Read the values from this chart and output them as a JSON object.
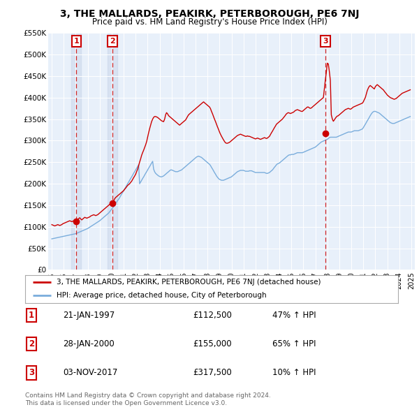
{
  "title": "3, THE MALLARDS, PEAKIRK, PETERBOROUGH, PE6 7NJ",
  "subtitle": "Price paid vs. HM Land Registry's House Price Index (HPI)",
  "ylim": [
    0,
    550000
  ],
  "yticks": [
    0,
    50000,
    100000,
    150000,
    200000,
    250000,
    300000,
    350000,
    400000,
    450000,
    500000,
    550000
  ],
  "ytick_labels": [
    "£0",
    "£50K",
    "£100K",
    "£150K",
    "£200K",
    "£250K",
    "£300K",
    "£350K",
    "£400K",
    "£450K",
    "£500K",
    "£550K"
  ],
  "xlim_start": 1994.7,
  "xlim_end": 2025.3,
  "background_color": "#E8F0FA",
  "grid_color": "#FFFFFF",
  "sale_dates": [
    1997.05,
    2000.07,
    2017.84
  ],
  "sale_prices": [
    112500,
    155000,
    317500
  ],
  "sale_labels": [
    "1",
    "2",
    "3"
  ],
  "sale_pct": [
    "47% ↑ HPI",
    "65% ↑ HPI",
    "10% ↑ HPI"
  ],
  "sale_date_strs": [
    "21-JAN-1997",
    "28-JAN-2000",
    "03-NOV-2017"
  ],
  "sale_prices_str": [
    "£112,500",
    "£155,000",
    "£317,500"
  ],
  "legend_line1": "3, THE MALLARDS, PEAKIRK, PETERBOROUGH, PE6 7NJ (detached house)",
  "legend_line2": "HPI: Average price, detached house, City of Peterborough",
  "footer": "Contains HM Land Registry data © Crown copyright and database right 2024.\nThis data is licensed under the Open Government Licence v3.0.",
  "red_line_x": [
    1995.0,
    1995.08,
    1995.17,
    1995.25,
    1995.33,
    1995.42,
    1995.5,
    1995.58,
    1995.67,
    1995.75,
    1995.83,
    1995.92,
    1996.0,
    1996.08,
    1996.17,
    1996.25,
    1996.33,
    1996.42,
    1996.5,
    1996.58,
    1996.67,
    1996.75,
    1996.83,
    1996.92,
    1997.0,
    1997.08,
    1997.17,
    1997.25,
    1997.33,
    1997.42,
    1997.5,
    1997.58,
    1997.67,
    1997.75,
    1997.83,
    1997.92,
    1998.0,
    1998.08,
    1998.17,
    1998.25,
    1998.33,
    1998.42,
    1998.5,
    1998.58,
    1998.67,
    1998.75,
    1998.83,
    1998.92,
    1999.0,
    1999.08,
    1999.17,
    1999.25,
    1999.33,
    1999.42,
    1999.5,
    1999.58,
    1999.67,
    1999.75,
    1999.83,
    1999.92,
    2000.0,
    2000.08,
    2000.17,
    2000.25,
    2000.33,
    2000.42,
    2000.5,
    2000.58,
    2000.67,
    2000.75,
    2000.83,
    2000.92,
    2001.0,
    2001.08,
    2001.17,
    2001.25,
    2001.33,
    2001.42,
    2001.5,
    2001.58,
    2001.67,
    2001.75,
    2001.83,
    2001.92,
    2002.0,
    2002.08,
    2002.17,
    2002.25,
    2002.33,
    2002.42,
    2002.5,
    2002.58,
    2002.67,
    2002.75,
    2002.83,
    2002.92,
    2003.0,
    2003.08,
    2003.17,
    2003.25,
    2003.33,
    2003.42,
    2003.5,
    2003.58,
    2003.67,
    2003.75,
    2003.83,
    2003.92,
    2004.0,
    2004.08,
    2004.17,
    2004.25,
    2004.33,
    2004.42,
    2004.5,
    2004.58,
    2004.67,
    2004.75,
    2004.83,
    2004.92,
    2005.0,
    2005.08,
    2005.17,
    2005.25,
    2005.33,
    2005.42,
    2005.5,
    2005.58,
    2005.67,
    2005.75,
    2005.83,
    2005.92,
    2006.0,
    2006.08,
    2006.17,
    2006.25,
    2006.33,
    2006.42,
    2006.5,
    2006.58,
    2006.67,
    2006.75,
    2006.83,
    2006.92,
    2007.0,
    2007.08,
    2007.17,
    2007.25,
    2007.33,
    2007.42,
    2007.5,
    2007.58,
    2007.67,
    2007.75,
    2007.83,
    2007.92,
    2008.0,
    2008.08,
    2008.17,
    2008.25,
    2008.33,
    2008.42,
    2008.5,
    2008.58,
    2008.67,
    2008.75,
    2008.83,
    2008.92,
    2009.0,
    2009.08,
    2009.17,
    2009.25,
    2009.33,
    2009.42,
    2009.5,
    2009.58,
    2009.67,
    2009.75,
    2009.83,
    2009.92,
    2010.0,
    2010.08,
    2010.17,
    2010.25,
    2010.33,
    2010.42,
    2010.5,
    2010.58,
    2010.67,
    2010.75,
    2010.83,
    2010.92,
    2011.0,
    2011.08,
    2011.17,
    2011.25,
    2011.33,
    2011.42,
    2011.5,
    2011.58,
    2011.67,
    2011.75,
    2011.83,
    2011.92,
    2012.0,
    2012.08,
    2012.17,
    2012.25,
    2012.33,
    2012.42,
    2012.5,
    2012.58,
    2012.67,
    2012.75,
    2012.83,
    2012.92,
    2013.0,
    2013.08,
    2013.17,
    2013.25,
    2013.33,
    2013.42,
    2013.5,
    2013.58,
    2013.67,
    2013.75,
    2013.83,
    2013.92,
    2014.0,
    2014.08,
    2014.17,
    2014.25,
    2014.33,
    2014.42,
    2014.5,
    2014.58,
    2014.67,
    2014.75,
    2014.83,
    2014.92,
    2015.0,
    2015.08,
    2015.17,
    2015.25,
    2015.33,
    2015.42,
    2015.5,
    2015.58,
    2015.67,
    2015.75,
    2015.83,
    2015.92,
    2016.0,
    2016.08,
    2016.17,
    2016.25,
    2016.33,
    2016.42,
    2016.5,
    2016.58,
    2016.67,
    2016.75,
    2016.83,
    2016.92,
    2017.0,
    2017.08,
    2017.17,
    2017.25,
    2017.33,
    2017.42,
    2017.5,
    2017.58,
    2017.67,
    2017.75,
    2017.83,
    2017.92,
    2018.0,
    2018.08,
    2018.17,
    2018.25,
    2018.33,
    2018.42,
    2018.5,
    2018.58,
    2018.67,
    2018.75,
    2018.83,
    2018.92,
    2019.0,
    2019.08,
    2019.17,
    2019.25,
    2019.33,
    2019.42,
    2019.5,
    2019.58,
    2019.67,
    2019.75,
    2019.83,
    2019.92,
    2020.0,
    2020.08,
    2020.17,
    2020.25,
    2020.33,
    2020.42,
    2020.5,
    2020.58,
    2020.67,
    2020.75,
    2020.83,
    2020.92,
    2021.0,
    2021.08,
    2021.17,
    2021.25,
    2021.33,
    2021.42,
    2021.5,
    2021.58,
    2021.67,
    2021.75,
    2021.83,
    2021.92,
    2022.0,
    2022.08,
    2022.17,
    2022.25,
    2022.33,
    2022.42,
    2022.5,
    2022.58,
    2022.67,
    2022.75,
    2022.83,
    2022.92,
    2023.0,
    2023.08,
    2023.17,
    2023.25,
    2023.33,
    2023.42,
    2023.5,
    2023.58,
    2023.67,
    2023.75,
    2023.83,
    2023.92,
    2024.0,
    2024.08,
    2024.17,
    2024.25,
    2024.33,
    2024.42,
    2024.5,
    2024.58,
    2024.67,
    2024.75,
    2024.83,
    2024.92
  ],
  "red_line_y": [
    105000,
    104000,
    103000,
    102000,
    103000,
    104000,
    105000,
    104000,
    103000,
    104000,
    105000,
    107000,
    108000,
    109000,
    110000,
    111000,
    112000,
    113000,
    114000,
    113000,
    112000,
    113000,
    114000,
    115000,
    112500,
    115000,
    117000,
    119000,
    121000,
    118000,
    116000,
    118000,
    120000,
    122000,
    121000,
    120000,
    121000,
    122000,
    123000,
    125000,
    126000,
    127000,
    128000,
    127000,
    126000,
    127000,
    128000,
    130000,
    132000,
    134000,
    136000,
    138000,
    140000,
    142000,
    144000,
    146000,
    148000,
    150000,
    152000,
    154000,
    155000,
    158000,
    161000,
    165000,
    168000,
    170000,
    172000,
    174000,
    176000,
    178000,
    180000,
    182000,
    184000,
    187000,
    190000,
    193000,
    196000,
    198000,
    200000,
    203000,
    206000,
    210000,
    214000,
    218000,
    222000,
    228000,
    234000,
    242000,
    250000,
    258000,
    266000,
    272000,
    278000,
    284000,
    290000,
    298000,
    308000,
    318000,
    328000,
    336000,
    344000,
    350000,
    354000,
    356000,
    356000,
    355000,
    354000,
    352000,
    350000,
    348000,
    346000,
    345000,
    344000,
    350000,
    360000,
    365000,
    362000,
    358000,
    356000,
    354000,
    352000,
    350000,
    348000,
    346000,
    344000,
    342000,
    340000,
    338000,
    336000,
    338000,
    340000,
    342000,
    344000,
    346000,
    348000,
    352000,
    356000,
    360000,
    362000,
    364000,
    366000,
    368000,
    370000,
    372000,
    374000,
    376000,
    378000,
    380000,
    382000,
    384000,
    386000,
    388000,
    390000,
    388000,
    386000,
    384000,
    382000,
    380000,
    378000,
    374000,
    368000,
    362000,
    356000,
    350000,
    344000,
    338000,
    332000,
    326000,
    320000,
    315000,
    310000,
    306000,
    302000,
    298000,
    295000,
    294000,
    294000,
    295000,
    296000,
    298000,
    300000,
    302000,
    304000,
    306000,
    308000,
    310000,
    312000,
    313000,
    314000,
    315000,
    314000,
    313000,
    312000,
    311000,
    310000,
    310000,
    311000,
    310000,
    310000,
    309000,
    308000,
    307000,
    306000,
    305000,
    304000,
    305000,
    306000,
    305000,
    304000,
    303000,
    304000,
    305000,
    306000,
    307000,
    306000,
    305000,
    306000,
    308000,
    310000,
    314000,
    318000,
    322000,
    326000,
    330000,
    334000,
    338000,
    340000,
    342000,
    344000,
    346000,
    348000,
    350000,
    353000,
    356000,
    359000,
    362000,
    364000,
    365000,
    364000,
    363000,
    364000,
    365000,
    366000,
    368000,
    370000,
    371000,
    372000,
    371000,
    370000,
    369000,
    368000,
    368000,
    370000,
    372000,
    374000,
    376000,
    378000,
    378000,
    376000,
    375000,
    376000,
    378000,
    380000,
    382000,
    384000,
    386000,
    388000,
    390000,
    392000,
    394000,
    396000,
    398000,
    400000,
    420000,
    440000,
    460000,
    480000,
    478000,
    460000,
    440000,
    360000,
    350000,
    345000,
    348000,
    352000,
    355000,
    357000,
    358000,
    360000,
    362000,
    364000,
    366000,
    368000,
    370000,
    372000,
    373000,
    374000,
    375000,
    374000,
    373000,
    374000,
    376000,
    378000,
    379000,
    380000,
    381000,
    382000,
    383000,
    384000,
    385000,
    386000,
    387000,
    390000,
    395000,
    400000,
    408000,
    416000,
    422000,
    426000,
    428000,
    426000,
    424000,
    422000,
    420000,
    425000,
    428000,
    430000,
    428000,
    426000,
    424000,
    422000,
    420000,
    418000,
    415000,
    412000,
    409000,
    406000,
    404000,
    402000,
    400000,
    399000,
    398000,
    397000,
    396000,
    397000,
    398000,
    400000,
    402000,
    404000,
    406000,
    408000,
    410000,
    411000,
    412000,
    413000,
    414000,
    415000,
    416000,
    417000,
    418000
  ],
  "blue_line_x": [
    1995.0,
    1995.08,
    1995.17,
    1995.25,
    1995.33,
    1995.42,
    1995.5,
    1995.58,
    1995.67,
    1995.75,
    1995.83,
    1995.92,
    1996.0,
    1996.08,
    1996.17,
    1996.25,
    1996.33,
    1996.42,
    1996.5,
    1996.58,
    1996.67,
    1996.75,
    1996.83,
    1996.92,
    1997.0,
    1997.08,
    1997.17,
    1997.25,
    1997.33,
    1997.42,
    1997.5,
    1997.58,
    1997.67,
    1997.75,
    1997.83,
    1997.92,
    1998.0,
    1998.08,
    1998.17,
    1998.25,
    1998.33,
    1998.42,
    1998.5,
    1998.58,
    1998.67,
    1998.75,
    1998.83,
    1998.92,
    1999.0,
    1999.08,
    1999.17,
    1999.25,
    1999.33,
    1999.42,
    1999.5,
    1999.58,
    1999.67,
    1999.75,
    1999.83,
    1999.92,
    2000.0,
    2000.08,
    2000.17,
    2000.25,
    2000.33,
    2000.42,
    2000.5,
    2000.58,
    2000.67,
    2000.75,
    2000.83,
    2000.92,
    2001.0,
    2001.08,
    2001.17,
    2001.25,
    2001.33,
    2001.42,
    2001.5,
    2001.58,
    2001.67,
    2001.75,
    2001.83,
    2001.92,
    2002.0,
    2002.08,
    2002.17,
    2002.25,
    2002.33,
    2002.42,
    2002.5,
    2002.58,
    2002.67,
    2002.75,
    2002.83,
    2002.92,
    2003.0,
    2003.08,
    2003.17,
    2003.25,
    2003.33,
    2003.42,
    2003.5,
    2003.58,
    2003.67,
    2003.75,
    2003.83,
    2003.92,
    2004.0,
    2004.08,
    2004.17,
    2004.25,
    2004.33,
    2004.42,
    2004.5,
    2004.58,
    2004.67,
    2004.75,
    2004.83,
    2004.92,
    2005.0,
    2005.08,
    2005.17,
    2005.25,
    2005.33,
    2005.42,
    2005.5,
    2005.58,
    2005.67,
    2005.75,
    2005.83,
    2005.92,
    2006.0,
    2006.08,
    2006.17,
    2006.25,
    2006.33,
    2006.42,
    2006.5,
    2006.58,
    2006.67,
    2006.75,
    2006.83,
    2006.92,
    2007.0,
    2007.08,
    2007.17,
    2007.25,
    2007.33,
    2007.42,
    2007.5,
    2007.58,
    2007.67,
    2007.75,
    2007.83,
    2007.92,
    2008.0,
    2008.08,
    2008.17,
    2008.25,
    2008.33,
    2008.42,
    2008.5,
    2008.58,
    2008.67,
    2008.75,
    2008.83,
    2008.92,
    2009.0,
    2009.08,
    2009.17,
    2009.25,
    2009.33,
    2009.42,
    2009.5,
    2009.58,
    2009.67,
    2009.75,
    2009.83,
    2009.92,
    2010.0,
    2010.08,
    2010.17,
    2010.25,
    2010.33,
    2010.42,
    2010.5,
    2010.58,
    2010.67,
    2010.75,
    2010.83,
    2010.92,
    2011.0,
    2011.08,
    2011.17,
    2011.25,
    2011.33,
    2011.42,
    2011.5,
    2011.58,
    2011.67,
    2011.75,
    2011.83,
    2011.92,
    2012.0,
    2012.08,
    2012.17,
    2012.25,
    2012.33,
    2012.42,
    2012.5,
    2012.58,
    2012.67,
    2012.75,
    2012.83,
    2012.92,
    2013.0,
    2013.08,
    2013.17,
    2013.25,
    2013.33,
    2013.42,
    2013.5,
    2013.58,
    2013.67,
    2013.75,
    2013.83,
    2013.92,
    2014.0,
    2014.08,
    2014.17,
    2014.25,
    2014.33,
    2014.42,
    2014.5,
    2014.58,
    2014.67,
    2014.75,
    2014.83,
    2014.92,
    2015.0,
    2015.08,
    2015.17,
    2015.25,
    2015.33,
    2015.42,
    2015.5,
    2015.58,
    2015.67,
    2015.75,
    2015.83,
    2015.92,
    2016.0,
    2016.08,
    2016.17,
    2016.25,
    2016.33,
    2016.42,
    2016.5,
    2016.58,
    2016.67,
    2016.75,
    2016.83,
    2016.92,
    2017.0,
    2017.08,
    2017.17,
    2017.25,
    2017.33,
    2017.42,
    2017.5,
    2017.58,
    2017.67,
    2017.75,
    2017.83,
    2017.92,
    2018.0,
    2018.08,
    2018.17,
    2018.25,
    2018.33,
    2018.42,
    2018.5,
    2018.58,
    2018.67,
    2018.75,
    2018.83,
    2018.92,
    2019.0,
    2019.08,
    2019.17,
    2019.25,
    2019.33,
    2019.42,
    2019.5,
    2019.58,
    2019.67,
    2019.75,
    2019.83,
    2019.92,
    2020.0,
    2020.08,
    2020.17,
    2020.25,
    2020.33,
    2020.42,
    2020.5,
    2020.58,
    2020.67,
    2020.75,
    2020.83,
    2020.92,
    2021.0,
    2021.08,
    2021.17,
    2021.25,
    2021.33,
    2021.42,
    2021.5,
    2021.58,
    2021.67,
    2021.75,
    2021.83,
    2021.92,
    2022.0,
    2022.08,
    2022.17,
    2022.25,
    2022.33,
    2022.42,
    2022.5,
    2022.58,
    2022.67,
    2022.75,
    2022.83,
    2022.92,
    2023.0,
    2023.08,
    2023.17,
    2023.25,
    2023.33,
    2023.42,
    2023.5,
    2023.58,
    2023.67,
    2023.75,
    2023.83,
    2023.92,
    2024.0,
    2024.08,
    2024.17,
    2024.25,
    2024.33,
    2024.42,
    2024.5,
    2024.58,
    2024.67,
    2024.75,
    2024.83,
    2024.92
  ],
  "blue_line_y": [
    72000,
    72500,
    73000,
    73500,
    74000,
    74500,
    75000,
    75500,
    76000,
    76500,
    77000,
    77500,
    78000,
    78500,
    79000,
    79500,
    80000,
    80500,
    81000,
    81500,
    82000,
    82500,
    83000,
    83500,
    84000,
    85000,
    86000,
    87000,
    88000,
    89000,
    90000,
    91000,
    92000,
    93000,
    94000,
    95000,
    96000,
    97500,
    99000,
    100500,
    102000,
    103500,
    105000,
    106500,
    108000,
    109500,
    111000,
    112500,
    114000,
    116000,
    118000,
    120000,
    122000,
    124000,
    126000,
    128000,
    130000,
    132000,
    135000,
    138000,
    141000,
    144000,
    147000,
    151000,
    155000,
    158000,
    161000,
    164000,
    168000,
    172000,
    176000,
    180000,
    184000,
    188000,
    192000,
    196000,
    200000,
    204000,
    208000,
    212000,
    216000,
    220000,
    224000,
    228000,
    232000,
    236000,
    240000,
    244000,
    200000,
    204000,
    208000,
    212000,
    216000,
    220000,
    224000,
    228000,
    232000,
    236000,
    240000,
    244000,
    248000,
    252000,
    234000,
    228000,
    224000,
    222000,
    220000,
    218000,
    217000,
    216000,
    216000,
    217000,
    218000,
    220000,
    222000,
    224000,
    226000,
    228000,
    230000,
    232000,
    232000,
    231000,
    230000,
    229000,
    228000,
    228000,
    228000,
    229000,
    230000,
    231000,
    232000,
    234000,
    236000,
    238000,
    240000,
    242000,
    244000,
    246000,
    248000,
    250000,
    252000,
    254000,
    256000,
    258000,
    260000,
    262000,
    263000,
    264000,
    263000,
    262000,
    261000,
    259000,
    257000,
    255000,
    253000,
    251000,
    249000,
    247000,
    245000,
    242000,
    238000,
    234000,
    230000,
    226000,
    222000,
    218000,
    215000,
    212000,
    210000,
    209000,
    208000,
    208000,
    208000,
    209000,
    210000,
    211000,
    212000,
    213000,
    214000,
    215000,
    216000,
    218000,
    220000,
    222000,
    224000,
    226000,
    228000,
    229000,
    230000,
    231000,
    231000,
    231000,
    231000,
    230000,
    229000,
    229000,
    229000,
    229000,
    230000,
    230000,
    230000,
    229000,
    228000,
    227000,
    226000,
    226000,
    226000,
    226000,
    226000,
    226000,
    226000,
    226000,
    226000,
    226000,
    225000,
    224000,
    224000,
    225000,
    226000,
    228000,
    230000,
    232000,
    235000,
    238000,
    241000,
    244000,
    246000,
    247000,
    248000,
    250000,
    252000,
    254000,
    256000,
    258000,
    260000,
    262000,
    264000,
    266000,
    267000,
    267000,
    268000,
    268000,
    268000,
    269000,
    270000,
    271000,
    272000,
    272000,
    272000,
    272000,
    272000,
    272000,
    273000,
    274000,
    275000,
    276000,
    277000,
    278000,
    279000,
    280000,
    281000,
    282000,
    283000,
    284000,
    285000,
    287000,
    289000,
    291000,
    293000,
    295000,
    297000,
    298000,
    299000,
    300000,
    301000,
    302000,
    303000,
    305000,
    307000,
    308000,
    308000,
    308000,
    308000,
    308000,
    308000,
    308000,
    309000,
    310000,
    311000,
    312000,
    313000,
    314000,
    315000,
    316000,
    317000,
    318000,
    319000,
    320000,
    320000,
    320000,
    320000,
    321000,
    322000,
    323000,
    323000,
    323000,
    323000,
    323000,
    324000,
    325000,
    326000,
    327000,
    330000,
    334000,
    338000,
    342000,
    346000,
    350000,
    354000,
    358000,
    362000,
    365000,
    367000,
    368000,
    368000,
    367000,
    366000,
    365000,
    364000,
    362000,
    360000,
    358000,
    356000,
    354000,
    352000,
    350000,
    348000,
    346000,
    344000,
    342000,
    341000,
    340000,
    340000,
    340000,
    341000,
    342000,
    343000,
    344000,
    345000,
    346000,
    347000,
    348000,
    349000,
    350000,
    351000,
    352000,
    353000,
    354000,
    355000,
    356000
  ]
}
